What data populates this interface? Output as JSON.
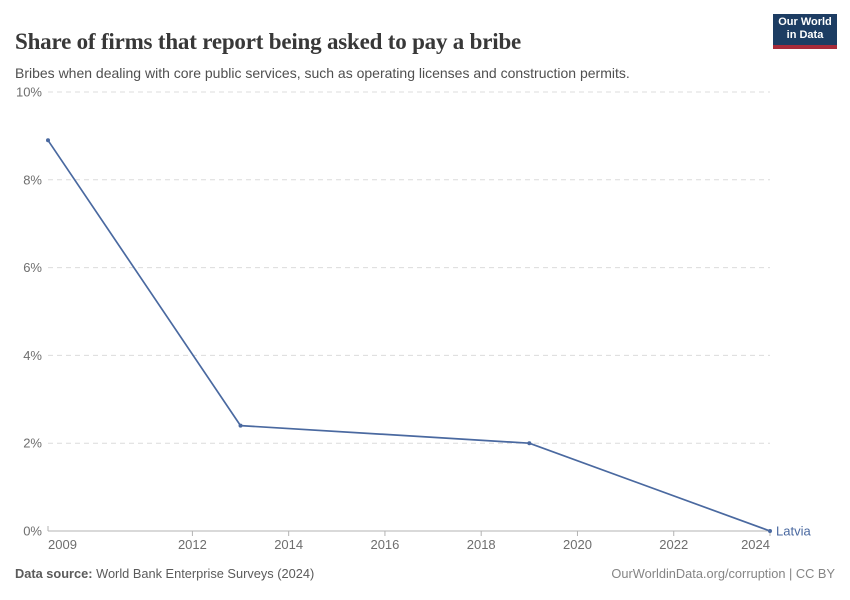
{
  "header": {
    "title": "Share of firms that report being asked to pay a bribe",
    "subtitle": "Bribes when dealing with core public services, such as operating licenses and construction permits.",
    "logo_line1": "Our World",
    "logo_line2": "in Data"
  },
  "chart_data": {
    "type": "line",
    "title": "Share of firms that report being asked to pay a bribe",
    "xlabel": "",
    "ylabel": "",
    "xlim": [
      2009,
      2024
    ],
    "ylim": [
      0,
      10
    ],
    "grid": true,
    "legend_position": "end-of-line-label",
    "x_ticks": [
      2009,
      2012,
      2014,
      2016,
      2018,
      2020,
      2022,
      2024
    ],
    "y_ticks": [
      0,
      2,
      4,
      6,
      8,
      10
    ],
    "y_tick_suffix": "%",
    "series": [
      {
        "name": "Latvia",
        "color": "#4a69a0",
        "points": [
          {
            "x": 2009,
            "y": 8.9
          },
          {
            "x": 2013,
            "y": 2.4
          },
          {
            "x": 2019,
            "y": 2.0
          },
          {
            "x": 2024,
            "y": 0.0
          }
        ]
      }
    ]
  },
  "footer": {
    "source_label": "Data source:",
    "source_text": "World Bank Enterprise Surveys (2024)",
    "rights_text": "OurWorldinData.org/corruption | CC BY"
  },
  "colors": {
    "accent_blue": "#4a69a0",
    "logo_background": "#1d3d63",
    "logo_red": "#a82b3a",
    "gridline": "#dcdcdc",
    "axis": "#b3b3b3",
    "tick_text": "#6e6e6e",
    "title_text": "#383838",
    "subtitle_text": "#4f4f4f",
    "footer_text": "#5b5b5b",
    "footer_rights_text": "#858585"
  }
}
